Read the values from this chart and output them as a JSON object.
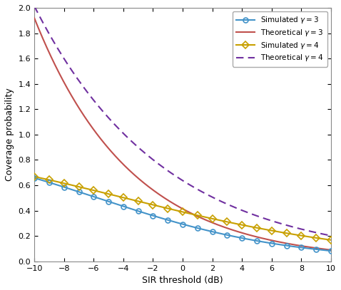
{
  "xlim": [
    -10,
    10
  ],
  "ylim": [
    0,
    2.0
  ],
  "xlabel": "SIR threshold (dB)",
  "ylabel": "Coverage probability",
  "yticks": [
    0,
    0.2,
    0.4,
    0.6,
    0.8,
    1.0,
    1.2,
    1.4,
    1.6,
    1.8,
    2.0
  ],
  "xticks": [
    -10,
    -8,
    -6,
    -4,
    -2,
    0,
    2,
    4,
    6,
    8,
    10
  ],
  "color_sim3": "#4393c9",
  "color_theo3": "#c0504d",
  "color_sim4": "#c8a000",
  "color_theo4": "#7030a0",
  "legend_labels": [
    "Simulated $\\gamma = 3$",
    "Theoretical $\\gamma = 3$",
    "Simulated $\\gamma = 4$",
    "Theoretical $\\gamma = 4$"
  ]
}
